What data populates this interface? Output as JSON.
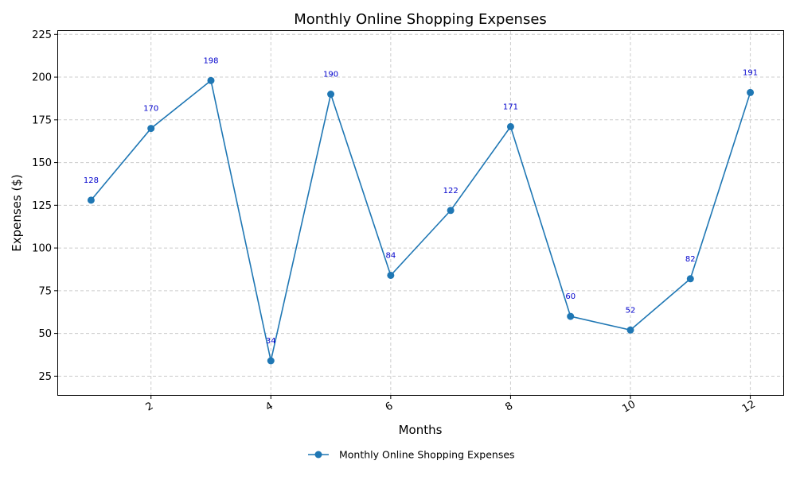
{
  "chart_data": {
    "type": "line",
    "title": "Monthly Online Shopping Expenses",
    "xlabel": "Months",
    "ylabel": "Expenses ($)",
    "x": [
      1,
      2,
      3,
      4,
      5,
      6,
      7,
      8,
      9,
      10,
      11,
      12
    ],
    "series": [
      {
        "name": "Monthly Online Shopping Expenses",
        "values": [
          128,
          170,
          198,
          34,
          190,
          84,
          122,
          171,
          60,
          52,
          82,
          191
        ],
        "color": "#1f77b4"
      }
    ],
    "data_labels": [
      "128",
      "170",
      "198",
      "34",
      "190",
      "84",
      "122",
      "171",
      "60",
      "52",
      "82",
      "191"
    ],
    "data_label_color": "#0000cc",
    "xlim": [
      0.45,
      12.55
    ],
    "ylim": [
      14,
      227
    ],
    "xticks": [
      2,
      4,
      6,
      8,
      10,
      12
    ],
    "xtick_labels": [
      "2",
      "4",
      "6",
      "8",
      "10",
      "12"
    ],
    "yticks": [
      25,
      50,
      75,
      100,
      125,
      150,
      175,
      200,
      225
    ],
    "ytick_labels": [
      "25",
      "50",
      "75",
      "100",
      "125",
      "150",
      "175",
      "200",
      "225"
    ],
    "grid": true,
    "legend_position": "bottom-center"
  }
}
